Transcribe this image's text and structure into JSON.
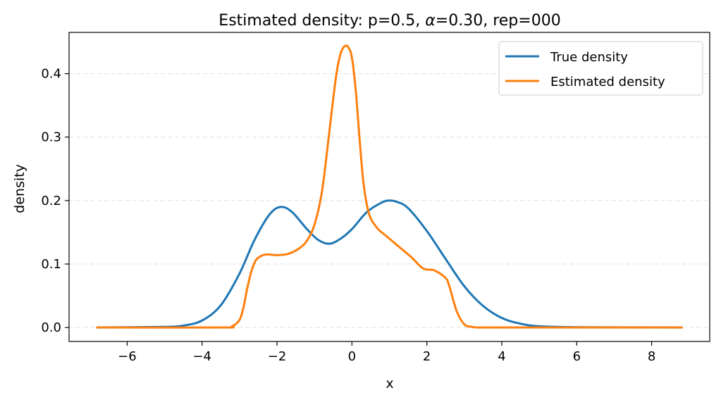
{
  "chart_data": {
    "type": "line",
    "title": "Estimated density: p=0.5, α=0.30, rep=000",
    "title_parts": {
      "before": "Estimated density: p=0.5, ",
      "alpha": "α",
      "after": "=0.30, rep=000"
    },
    "xlabel": "x",
    "ylabel": "density",
    "xlim": [
      -7.55,
      9.55
    ],
    "ylim": [
      -0.022,
      0.465
    ],
    "xticks": [
      -6,
      -4,
      -2,
      0,
      2,
      4,
      6,
      8
    ],
    "xtick_labels": [
      "−6",
      "−4",
      "−2",
      "0",
      "2",
      "4",
      "6",
      "8"
    ],
    "yticks": [
      0.0,
      0.1,
      0.2,
      0.3,
      0.4
    ],
    "ytick_labels": [
      "0.0",
      "0.1",
      "0.2",
      "0.3",
      "0.4"
    ],
    "grid": "horizontal dashed",
    "legend_position": "top-right",
    "series": [
      {
        "name": "True density",
        "color": "#1f77b4",
        "x": [
          -6.8,
          -5.0,
          -4.5,
          -4.0,
          -3.5,
          -3.0,
          -2.6,
          -2.2,
          -1.9,
          -1.6,
          -1.2,
          -0.9,
          -0.6,
          -0.3,
          0.0,
          0.4,
          0.8,
          1.0,
          1.2,
          1.5,
          2.0,
          2.5,
          3.0,
          3.5,
          4.0,
          4.5,
          5.0,
          6.0,
          8.8
        ],
        "y": [
          0.0,
          0.001,
          0.003,
          0.011,
          0.035,
          0.085,
          0.138,
          0.178,
          0.19,
          0.182,
          0.155,
          0.138,
          0.132,
          0.14,
          0.155,
          0.182,
          0.197,
          0.2,
          0.198,
          0.188,
          0.152,
          0.108,
          0.065,
          0.034,
          0.015,
          0.006,
          0.002,
          0.0005,
          0.0
        ]
      },
      {
        "name": "Estimated density",
        "color": "#ff7f0e",
        "x": [
          -6.8,
          -3.5,
          -3.2,
          -3.0,
          -2.9,
          -2.8,
          -2.7,
          -2.6,
          -2.5,
          -2.3,
          -2.0,
          -1.7,
          -1.4,
          -1.2,
          -1.0,
          -0.8,
          -0.6,
          -0.5,
          -0.4,
          -0.3,
          -0.2,
          -0.1,
          0.0,
          0.1,
          0.2,
          0.3,
          0.4,
          0.5,
          0.7,
          0.9,
          1.1,
          1.3,
          1.6,
          1.9,
          2.2,
          2.5,
          2.6,
          2.8,
          3.0,
          3.2,
          3.5,
          5.0,
          8.8
        ],
        "y": [
          0.0,
          0.0,
          0.002,
          0.012,
          0.03,
          0.06,
          0.085,
          0.102,
          0.11,
          0.115,
          0.114,
          0.116,
          0.125,
          0.137,
          0.162,
          0.214,
          0.31,
          0.36,
          0.405,
          0.432,
          0.443,
          0.442,
          0.425,
          0.375,
          0.3,
          0.232,
          0.193,
          0.172,
          0.155,
          0.145,
          0.135,
          0.125,
          0.11,
          0.093,
          0.09,
          0.078,
          0.065,
          0.025,
          0.005,
          0.001,
          0.0,
          0.0,
          0.0
        ]
      }
    ]
  }
}
